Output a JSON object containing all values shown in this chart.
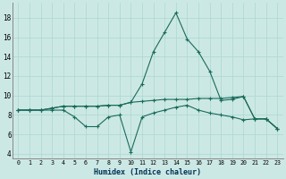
{
  "xlabel": "Humidex (Indice chaleur)",
  "background_color": "#cce8e5",
  "grid_color": "#aad8d0",
  "line_color": "#1a6b5a",
  "xlim": [
    -0.5,
    23.5
  ],
  "ylim": [
    3.5,
    19.5
  ],
  "xticks": [
    0,
    1,
    2,
    3,
    4,
    5,
    6,
    7,
    8,
    9,
    10,
    11,
    12,
    13,
    14,
    15,
    16,
    17,
    18,
    19,
    20,
    21,
    22,
    23
  ],
  "yticks": [
    4,
    6,
    8,
    10,
    12,
    14,
    16,
    18
  ],
  "line1_x": [
    0,
    1,
    2,
    3,
    4,
    5,
    6,
    7,
    8,
    9,
    10,
    11,
    12,
    13,
    14,
    15,
    16,
    17,
    18,
    19,
    20,
    21,
    22,
    23
  ],
  "line1_y": [
    8.5,
    8.5,
    8.5,
    8.7,
    8.9,
    8.9,
    8.9,
    8.9,
    9.0,
    9.0,
    9.3,
    11.2,
    14.5,
    16.5,
    18.5,
    15.8,
    14.5,
    12.5,
    9.5,
    9.6,
    9.9,
    7.6,
    7.6,
    6.6
  ],
  "line2_x": [
    0,
    1,
    2,
    3,
    4,
    5,
    6,
    7,
    8,
    9,
    10,
    11,
    12,
    13,
    14,
    15,
    16,
    17,
    18,
    19,
    20,
    21,
    22,
    23
  ],
  "line2_y": [
    8.5,
    8.5,
    8.5,
    8.7,
    8.9,
    8.9,
    8.9,
    8.9,
    9.0,
    9.0,
    9.3,
    9.4,
    9.5,
    9.6,
    9.6,
    9.6,
    9.7,
    9.7,
    9.7,
    9.8,
    9.9,
    7.6,
    7.6,
    6.6
  ],
  "line3_x": [
    0,
    1,
    2,
    3,
    4,
    5,
    6,
    7,
    8,
    9,
    10,
    11,
    12,
    13,
    14,
    15,
    16,
    17,
    18,
    19,
    20,
    21,
    22,
    23
  ],
  "line3_y": [
    8.5,
    8.5,
    8.5,
    8.5,
    8.5,
    7.8,
    6.8,
    6.8,
    7.8,
    8.0,
    4.2,
    7.8,
    8.2,
    8.5,
    8.8,
    9.0,
    8.5,
    8.2,
    8.0,
    7.8,
    7.5,
    7.6,
    7.6,
    6.6
  ]
}
